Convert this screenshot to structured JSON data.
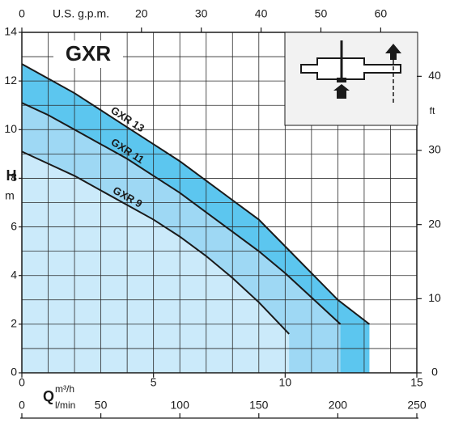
{
  "chart_data": {
    "type": "line",
    "title": "GXR",
    "x_label": "m³/h",
    "x_symbol": "Q",
    "y_label": "m",
    "y_symbol": "H",
    "xlim": [
      0,
      15
    ],
    "xticks": [
      0,
      5,
      10,
      15
    ],
    "xminorticks": [
      0,
      1,
      2,
      3,
      4,
      5,
      6,
      7,
      8,
      9,
      10,
      11,
      12,
      13,
      14,
      15
    ],
    "ylim": [
      0,
      14
    ],
    "yticks": [
      0,
      2,
      4,
      6,
      8,
      10,
      12,
      14
    ],
    "yminorticks": [
      0,
      1,
      2,
      3,
      4,
      5,
      6,
      7,
      8,
      9,
      10,
      11,
      12,
      13,
      14
    ],
    "top_axis": {
      "label": "U.S. g.p.m.",
      "lim": [
        0,
        66.04
      ],
      "ticks": [
        0,
        20,
        30,
        40,
        50,
        60
      ]
    },
    "right_axis": {
      "label": "ft",
      "lim": [
        0,
        45.93
      ],
      "ticks": [
        0,
        10,
        20,
        30,
        40
      ]
    },
    "bottom_axis": {
      "label": "l/min",
      "lim": [
        0,
        250
      ],
      "ticks": [
        0,
        50,
        100,
        150,
        200,
        250
      ]
    },
    "grid": true,
    "series": [
      {
        "name": "GXR 13",
        "color": "#5cc6ef",
        "x": [
          0,
          1,
          2,
          3,
          4,
          5,
          6,
          7,
          8,
          9,
          10,
          11,
          12,
          13.2
        ],
        "values": [
          12.7,
          12.1,
          11.5,
          10.8,
          10.1,
          9.4,
          8.7,
          7.9,
          7.1,
          6.3,
          5.2,
          4.1,
          3.0,
          2.0
        ]
      },
      {
        "name": "GXR 11",
        "color": "#9ed8f4",
        "x": [
          0,
          1,
          2,
          3,
          4,
          5,
          6,
          7,
          8,
          9,
          10,
          11,
          12.1
        ],
        "values": [
          11.1,
          10.6,
          10.0,
          9.4,
          8.8,
          8.1,
          7.4,
          6.6,
          5.8,
          5.0,
          4.1,
          3.1,
          2.0
        ]
      },
      {
        "name": "GXR 9",
        "color": "#cbeafa",
        "x": [
          0,
          1,
          2,
          3,
          4,
          5,
          6,
          7,
          8,
          9,
          10.15
        ],
        "values": [
          9.1,
          8.6,
          8.1,
          7.5,
          6.9,
          6.3,
          5.6,
          4.8,
          3.9,
          2.9,
          1.6
        ]
      }
    ]
  }
}
